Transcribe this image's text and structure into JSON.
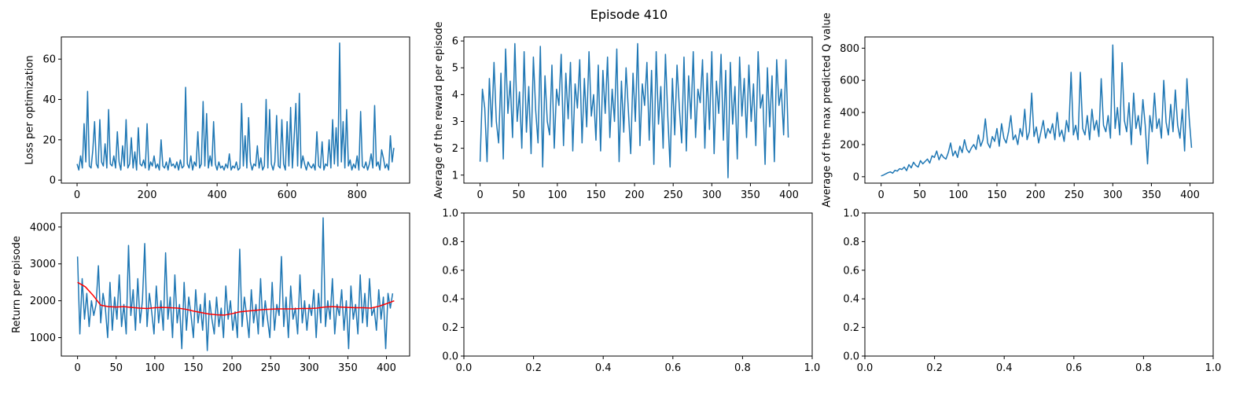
{
  "figure": {
    "title": "Episode 410"
  },
  "colors": {
    "line": "#1f77b4",
    "moving_average": "#ff0000",
    "axes": "#000000"
  },
  "chart_data": [
    {
      "id": "loss",
      "type": "line",
      "title": "",
      "xlabel": "",
      "ylabel": "Loss per optimization",
      "xlim": [
        -45,
        950
      ],
      "ylim": [
        -1.5,
        71
      ],
      "xticks": [
        0,
        200,
        400,
        600,
        800
      ],
      "yticks": [
        0,
        20,
        40,
        60
      ],
      "grid": false,
      "series": [
        {
          "x_start": 0,
          "x_step": 5,
          "values": [
            8,
            5,
            12,
            6,
            28,
            9,
            44,
            7,
            6,
            15,
            29,
            8,
            6,
            30,
            9,
            7,
            18,
            6,
            35,
            8,
            7,
            12,
            6,
            24,
            9,
            5,
            17,
            7,
            30,
            6,
            8,
            21,
            6,
            14,
            5,
            26,
            8,
            7,
            10,
            6,
            28,
            5,
            9,
            7,
            12,
            6,
            8,
            5,
            20,
            7,
            6,
            9,
            5,
            11,
            7,
            8,
            6,
            9,
            5,
            10,
            6,
            7,
            46,
            8,
            6,
            12,
            5,
            9,
            7,
            24,
            6,
            8,
            39,
            7,
            33,
            6,
            12,
            7,
            29,
            8,
            5,
            9,
            6,
            7,
            5,
            8,
            6,
            13,
            5,
            7,
            6,
            9,
            5,
            6,
            38,
            7,
            22,
            6,
            31,
            9,
            5,
            8,
            7,
            17,
            6,
            11,
            5,
            7,
            40,
            6,
            35,
            8,
            5,
            9,
            32,
            7,
            6,
            30,
            8,
            5,
            29,
            7,
            36,
            6,
            21,
            38,
            7,
            43,
            6,
            12,
            8,
            5,
            9,
            7,
            6,
            8,
            5,
            24,
            7,
            6,
            19,
            5,
            8,
            7,
            20,
            6,
            30,
            8,
            26,
            7,
            68,
            9,
            29,
            6,
            35,
            7,
            10,
            5,
            8,
            6,
            12,
            5,
            34,
            7,
            6,
            9,
            5,
            8,
            13,
            6,
            37,
            7,
            9,
            5,
            15,
            11,
            6,
            8,
            5,
            22,
            9,
            16
          ],
          "name": ""
        }
      ]
    },
    {
      "id": "reward",
      "type": "line",
      "title": "",
      "xlabel": "",
      "ylabel": "Average of the reward per episode",
      "xlim": [
        -21,
        430
      ],
      "ylim": [
        0.7,
        6.15
      ],
      "xticks": [
        0,
        50,
        100,
        150,
        200,
        250,
        300,
        350,
        400
      ],
      "yticks": [
        1,
        2,
        3,
        4,
        5,
        6
      ],
      "grid": false,
      "series": [
        {
          "x_start": 0,
          "x_step": 3,
          "values": [
            1.5,
            4.2,
            3.5,
            1.5,
            4.6,
            2.8,
            5.2,
            3.0,
            2.2,
            4.8,
            1.6,
            5.7,
            3.3,
            4.5,
            2.4,
            5.9,
            3.0,
            4.1,
            2.0,
            5.6,
            2.6,
            4.3,
            1.8,
            5.4,
            3.4,
            2.2,
            5.8,
            1.3,
            4.7,
            3.0,
            2.5,
            5.1,
            2.0,
            4.2,
            3.6,
            5.5,
            2.1,
            4.8,
            3.1,
            5.2,
            1.9,
            4.4,
            3.5,
            5.3,
            2.2,
            4.6,
            2.8,
            5.6,
            3.2,
            4.0,
            2.3,
            5.1,
            1.9,
            4.9,
            3.3,
            5.4,
            2.4,
            4.2,
            3.0,
            5.7,
            1.5,
            4.5,
            2.6,
            5.0,
            3.4,
            1.8,
            4.8,
            3.0,
            5.9,
            2.1,
            4.4,
            3.6,
            5.2,
            2.3,
            4.9,
            1.4,
            5.6,
            2.9,
            4.3,
            2.0,
            5.5,
            3.2,
            1.3,
            4.6,
            2.5,
            5.1,
            3.5,
            2.2,
            5.4,
            1.9,
            4.7,
            3.1,
            5.6,
            2.4,
            4.2,
            3.7,
            5.3,
            2.0,
            4.8,
            2.7,
            5.6,
            1.8,
            4.5,
            3.3,
            5.5,
            2.3,
            4.9,
            0.9,
            5.2,
            2.9,
            4.3,
            1.6,
            5.4,
            3.2,
            4.6,
            2.4,
            5.1,
            3.0,
            4.4,
            2.1,
            5.6,
            3.5,
            4.0,
            1.4,
            5.0,
            2.8,
            4.7,
            1.5,
            5.3,
            3.6,
            4.2,
            2.5,
            5.3,
            2.4
          ]
        }
      ]
    },
    {
      "id": "maxq",
      "type": "line",
      "title": "",
      "xlabel": "",
      "ylabel": "Average of the max predicted Q value",
      "xlim": [
        -21,
        430
      ],
      "ylim": [
        -40,
        870
      ],
      "xticks": [
        0,
        50,
        100,
        150,
        200,
        250,
        300,
        350,
        400
      ],
      "yticks": [
        0,
        200,
        400,
        600,
        800
      ],
      "grid": false,
      "series": [
        {
          "x_start": 0,
          "x_step": 3,
          "values": [
            5,
            10,
            18,
            25,
            30,
            22,
            40,
            35,
            50,
            45,
            60,
            38,
            75,
            55,
            90,
            70,
            60,
            100,
            80,
            95,
            110,
            85,
            130,
            120,
            160,
            105,
            140,
            120,
            110,
            150,
            210,
            130,
            160,
            120,
            190,
            150,
            230,
            170,
            150,
            180,
            200,
            170,
            260,
            190,
            230,
            360,
            210,
            180,
            250,
            220,
            300,
            190,
            330,
            240,
            210,
            280,
            380,
            230,
            260,
            200,
            300,
            250,
            420,
            230,
            280,
            520,
            250,
            310,
            210,
            280,
            350,
            240,
            300,
            270,
            330,
            230,
            400,
            250,
            290,
            220,
            350,
            280,
            650,
            260,
            320,
            230,
            650,
            300,
            260,
            380,
            230,
            420,
            290,
            350,
            250,
            610,
            320,
            280,
            380,
            240,
            820,
            300,
            430,
            260,
            710,
            350,
            280,
            460,
            200,
            520,
            300,
            380,
            260,
            480,
            320,
            80,
            380,
            280,
            520,
            300,
            360,
            240,
            600,
            340,
            260,
            450,
            280,
            540,
            320,
            240,
            420,
            160,
            610,
            360,
            180
          ]
        }
      ]
    },
    {
      "id": "return",
      "type": "line",
      "title": "",
      "xlabel": "",
      "ylabel": "Return per episode",
      "xlim": [
        -21,
        430
      ],
      "ylim": [
        500,
        4380
      ],
      "xticks": [
        0,
        50,
        100,
        150,
        200,
        250,
        300,
        350,
        400
      ],
      "yticks": [
        1000,
        2000,
        3000,
        4000
      ],
      "grid": false,
      "series": [
        {
          "x_start": 0,
          "x_step": 3,
          "values": [
            3200,
            1100,
            2600,
            1500,
            2200,
            1300,
            2000,
            1600,
            1900,
            2950,
            1400,
            2200,
            1800,
            1000,
            2500,
            1200,
            2100,
            1500,
            2700,
            1300,
            1900,
            1100,
            3500,
            1600,
            2300,
            1200,
            2600,
            1400,
            2000,
            3550,
            1300,
            2200,
            1700,
            1100,
            2400,
            1400,
            2000,
            1200,
            3300,
            1500,
            2100,
            1000,
            2700,
            1400,
            1900,
            700,
            2500,
            1200,
            2100,
            1600,
            1000,
            2300,
            1400,
            1900,
            1200,
            2200,
            650,
            2000,
            1500,
            1100,
            2100,
            1300,
            1800,
            1000,
            2400,
            1500,
            2000,
            1200,
            1700,
            1000,
            3400,
            1300,
            2100,
            1600,
            1000,
            2300,
            1400,
            1900,
            1100,
            2600,
            1300,
            2000,
            1500,
            1000,
            2500,
            1200,
            1900,
            1600,
            3200,
            1300,
            2100,
            1000,
            2400,
            1500,
            1800,
            1100,
            2700,
            1400,
            2000,
            1200,
            1900,
            1600,
            2300,
            1000,
            2200,
            1400,
            4250,
            1300,
            2000,
            1500,
            2600,
            1100,
            1900,
            1600,
            2300,
            1200,
            2000,
            700,
            2400,
            1500,
            1900,
            1100,
            2700,
            1400,
            2200,
            1300,
            2600,
            1600,
            1800,
            1200,
            2300,
            1500,
            2100,
            700,
            2200,
            1800,
            2200
          ],
          "name": ""
        },
        {
          "name": "",
          "x": [
            0,
            10,
            20,
            30,
            40,
            50,
            60,
            70,
            80,
            90,
            100,
            110,
            120,
            130,
            140,
            150,
            160,
            170,
            180,
            190,
            200,
            210,
            220,
            230,
            240,
            250,
            260,
            270,
            280,
            290,
            300,
            310,
            320,
            330,
            340,
            350,
            360,
            370,
            380,
            390,
            400,
            410
          ],
          "values": [
            2500,
            2380,
            2150,
            1880,
            1840,
            1830,
            1840,
            1820,
            1800,
            1790,
            1810,
            1820,
            1810,
            1800,
            1770,
            1720,
            1680,
            1640,
            1620,
            1610,
            1650,
            1700,
            1720,
            1740,
            1760,
            1770,
            1780,
            1780,
            1780,
            1790,
            1790,
            1800,
            1830,
            1840,
            1830,
            1820,
            1810,
            1810,
            1800,
            1850,
            1920,
            2000
          ],
          "style": "moving-average"
        }
      ]
    },
    {
      "id": "empty1",
      "type": "line",
      "title": "",
      "xlabel": "",
      "ylabel": "",
      "xlim": [
        0,
        1
      ],
      "ylim": [
        0,
        1
      ],
      "xticks": [
        0.0,
        0.2,
        0.4,
        0.6,
        0.8,
        1.0
      ],
      "yticks": [
        0.0,
        0.2,
        0.4,
        0.6,
        0.8,
        1.0
      ],
      "grid": false,
      "series": []
    },
    {
      "id": "empty2",
      "type": "line",
      "title": "",
      "xlabel": "",
      "ylabel": "",
      "xlim": [
        0,
        1
      ],
      "ylim": [
        0,
        1
      ],
      "xticks": [
        0.0,
        0.2,
        0.4,
        0.6,
        0.8,
        1.0
      ],
      "yticks": [
        0.0,
        0.2,
        0.4,
        0.6,
        0.8,
        1.0
      ],
      "grid": false,
      "series": []
    }
  ]
}
